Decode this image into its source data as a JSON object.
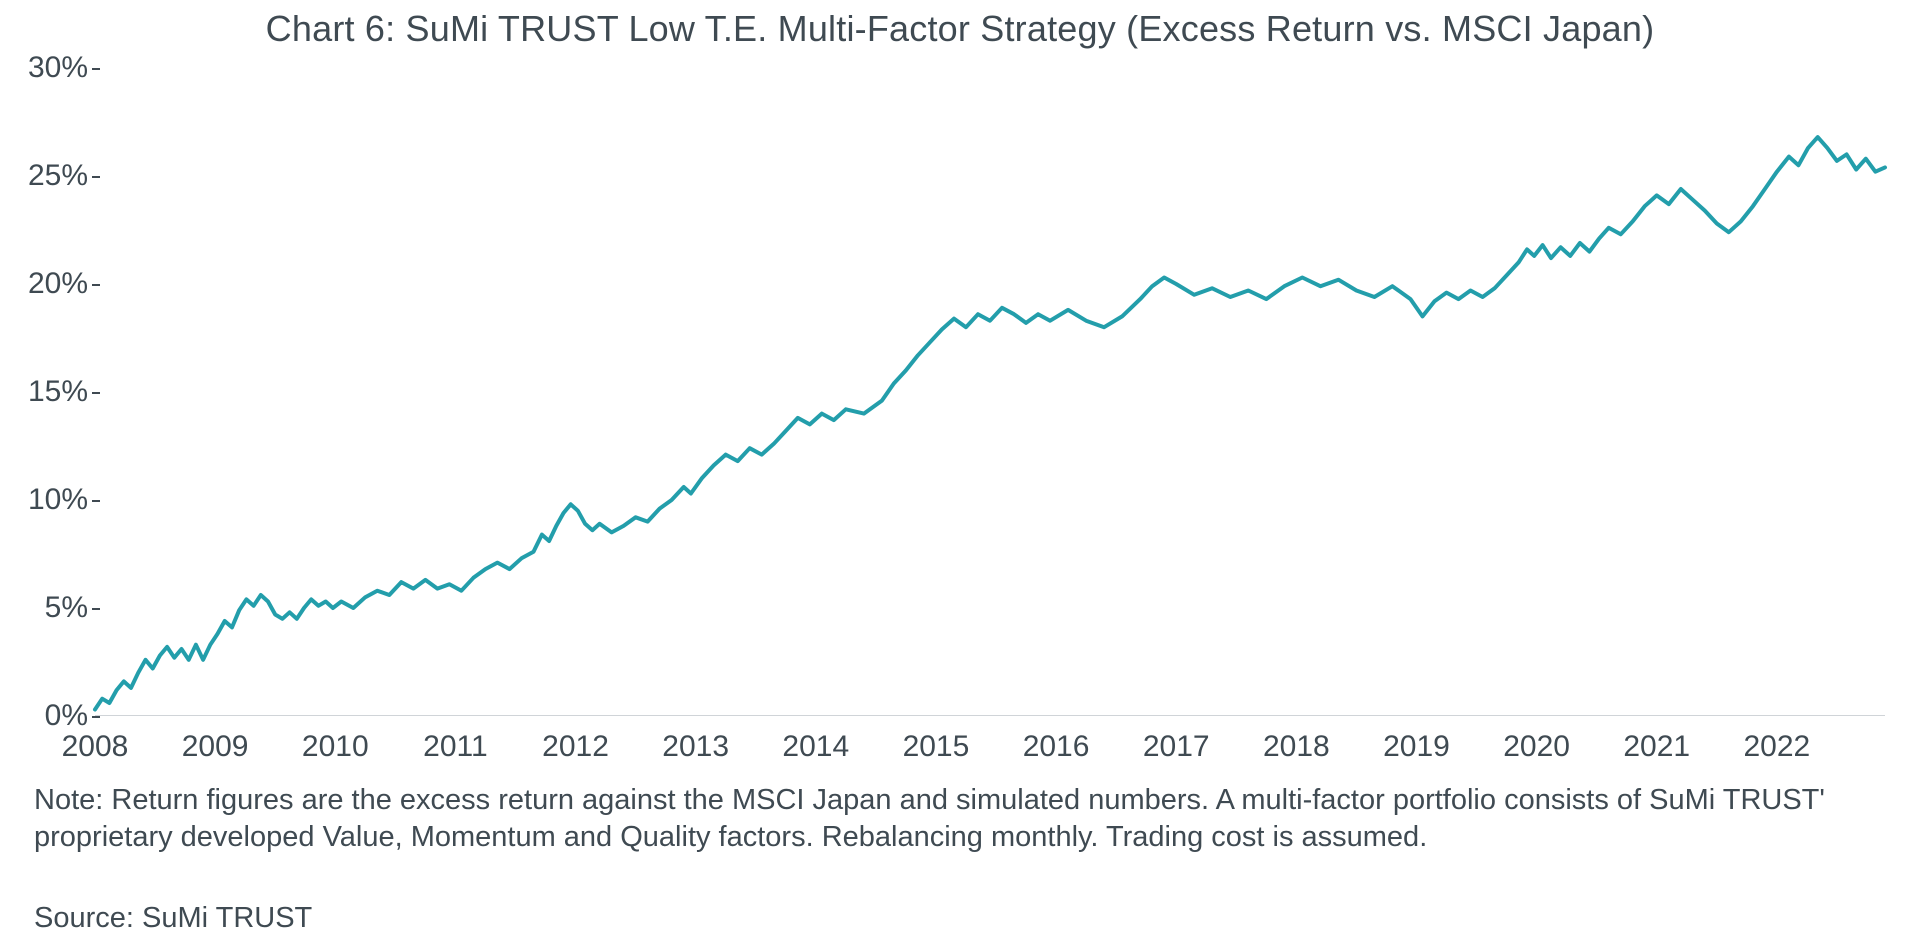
{
  "chart": {
    "type": "line",
    "title": "Chart 6: SuMi TRUST Low T.E. Multi-Factor Strategy (Excess Return vs. MSCI Japan)",
    "title_fontsize": 36,
    "title_color": "#3f4a52",
    "background_color": "#ffffff",
    "line_color": "#239eab",
    "line_width": 4,
    "axis_color": "#3f4a52",
    "baseline_color": "#d0d4d8",
    "label_fontsize": 30,
    "caption_fontsize": 29,
    "caption_color": "#3f4a52",
    "ylim": [
      0,
      30
    ],
    "ytick_step": 5,
    "yticks": [
      "0%",
      "5%",
      "10%",
      "15%",
      "20%",
      "25%",
      "30%"
    ],
    "xlim": [
      2008,
      2022.9
    ],
    "xticks": [
      "2008",
      "2009",
      "2010",
      "2011",
      "2012",
      "2013",
      "2014",
      "2015",
      "2016",
      "2017",
      "2018",
      "2019",
      "2020",
      "2021",
      "2022"
    ],
    "series": [
      {
        "x": 2008.0,
        "y": 0.3
      },
      {
        "x": 2008.06,
        "y": 0.8
      },
      {
        "x": 2008.12,
        "y": 0.6
      },
      {
        "x": 2008.18,
        "y": 1.2
      },
      {
        "x": 2008.24,
        "y": 1.6
      },
      {
        "x": 2008.3,
        "y": 1.3
      },
      {
        "x": 2008.36,
        "y": 2.0
      },
      {
        "x": 2008.42,
        "y": 2.6
      },
      {
        "x": 2008.48,
        "y": 2.2
      },
      {
        "x": 2008.54,
        "y": 2.8
      },
      {
        "x": 2008.6,
        "y": 3.2
      },
      {
        "x": 2008.66,
        "y": 2.7
      },
      {
        "x": 2008.72,
        "y": 3.1
      },
      {
        "x": 2008.78,
        "y": 2.6
      },
      {
        "x": 2008.84,
        "y": 3.3
      },
      {
        "x": 2008.9,
        "y": 2.6
      },
      {
        "x": 2008.96,
        "y": 3.3
      },
      {
        "x": 2009.02,
        "y": 3.8
      },
      {
        "x": 2009.08,
        "y": 4.4
      },
      {
        "x": 2009.14,
        "y": 4.1
      },
      {
        "x": 2009.2,
        "y": 4.9
      },
      {
        "x": 2009.26,
        "y": 5.4
      },
      {
        "x": 2009.32,
        "y": 5.1
      },
      {
        "x": 2009.38,
        "y": 5.6
      },
      {
        "x": 2009.44,
        "y": 5.3
      },
      {
        "x": 2009.5,
        "y": 4.7
      },
      {
        "x": 2009.56,
        "y": 4.5
      },
      {
        "x": 2009.62,
        "y": 4.8
      },
      {
        "x": 2009.68,
        "y": 4.5
      },
      {
        "x": 2009.74,
        "y": 5.0
      },
      {
        "x": 2009.8,
        "y": 5.4
      },
      {
        "x": 2009.86,
        "y": 5.1
      },
      {
        "x": 2009.92,
        "y": 5.3
      },
      {
        "x": 2009.98,
        "y": 5.0
      },
      {
        "x": 2010.05,
        "y": 5.3
      },
      {
        "x": 2010.15,
        "y": 5.0
      },
      {
        "x": 2010.25,
        "y": 5.5
      },
      {
        "x": 2010.35,
        "y": 5.8
      },
      {
        "x": 2010.45,
        "y": 5.6
      },
      {
        "x": 2010.55,
        "y": 6.2
      },
      {
        "x": 2010.65,
        "y": 5.9
      },
      {
        "x": 2010.75,
        "y": 6.3
      },
      {
        "x": 2010.85,
        "y": 5.9
      },
      {
        "x": 2010.95,
        "y": 6.1
      },
      {
        "x": 2011.05,
        "y": 5.8
      },
      {
        "x": 2011.15,
        "y": 6.4
      },
      {
        "x": 2011.25,
        "y": 6.8
      },
      {
        "x": 2011.35,
        "y": 7.1
      },
      {
        "x": 2011.45,
        "y": 6.8
      },
      {
        "x": 2011.55,
        "y": 7.3
      },
      {
        "x": 2011.65,
        "y": 7.6
      },
      {
        "x": 2011.72,
        "y": 8.4
      },
      {
        "x": 2011.78,
        "y": 8.1
      },
      {
        "x": 2011.84,
        "y": 8.8
      },
      {
        "x": 2011.9,
        "y": 9.4
      },
      {
        "x": 2011.96,
        "y": 9.8
      },
      {
        "x": 2012.02,
        "y": 9.5
      },
      {
        "x": 2012.08,
        "y": 8.9
      },
      {
        "x": 2012.14,
        "y": 8.6
      },
      {
        "x": 2012.2,
        "y": 8.9
      },
      {
        "x": 2012.3,
        "y": 8.5
      },
      {
        "x": 2012.4,
        "y": 8.8
      },
      {
        "x": 2012.5,
        "y": 9.2
      },
      {
        "x": 2012.6,
        "y": 9.0
      },
      {
        "x": 2012.7,
        "y": 9.6
      },
      {
        "x": 2012.8,
        "y": 10.0
      },
      {
        "x": 2012.9,
        "y": 10.6
      },
      {
        "x": 2012.96,
        "y": 10.3
      },
      {
        "x": 2013.05,
        "y": 11.0
      },
      {
        "x": 2013.15,
        "y": 11.6
      },
      {
        "x": 2013.25,
        "y": 12.1
      },
      {
        "x": 2013.35,
        "y": 11.8
      },
      {
        "x": 2013.45,
        "y": 12.4
      },
      {
        "x": 2013.55,
        "y": 12.1
      },
      {
        "x": 2013.65,
        "y": 12.6
      },
      {
        "x": 2013.75,
        "y": 13.2
      },
      {
        "x": 2013.85,
        "y": 13.8
      },
      {
        "x": 2013.95,
        "y": 13.5
      },
      {
        "x": 2014.05,
        "y": 14.0
      },
      {
        "x": 2014.15,
        "y": 13.7
      },
      {
        "x": 2014.25,
        "y": 14.2
      },
      {
        "x": 2014.4,
        "y": 14.0
      },
      {
        "x": 2014.55,
        "y": 14.6
      },
      {
        "x": 2014.65,
        "y": 15.4
      },
      {
        "x": 2014.75,
        "y": 16.0
      },
      {
        "x": 2014.85,
        "y": 16.7
      },
      {
        "x": 2014.95,
        "y": 17.3
      },
      {
        "x": 2015.05,
        "y": 17.9
      },
      {
        "x": 2015.15,
        "y": 18.4
      },
      {
        "x": 2015.25,
        "y": 18.0
      },
      {
        "x": 2015.35,
        "y": 18.6
      },
      {
        "x": 2015.45,
        "y": 18.3
      },
      {
        "x": 2015.55,
        "y": 18.9
      },
      {
        "x": 2015.65,
        "y": 18.6
      },
      {
        "x": 2015.75,
        "y": 18.2
      },
      {
        "x": 2015.85,
        "y": 18.6
      },
      {
        "x": 2015.95,
        "y": 18.3
      },
      {
        "x": 2016.1,
        "y": 18.8
      },
      {
        "x": 2016.25,
        "y": 18.3
      },
      {
        "x": 2016.4,
        "y": 18.0
      },
      {
        "x": 2016.55,
        "y": 18.5
      },
      {
        "x": 2016.7,
        "y": 19.3
      },
      {
        "x": 2016.8,
        "y": 19.9
      },
      {
        "x": 2016.9,
        "y": 20.3
      },
      {
        "x": 2017.0,
        "y": 20.0
      },
      {
        "x": 2017.15,
        "y": 19.5
      },
      {
        "x": 2017.3,
        "y": 19.8
      },
      {
        "x": 2017.45,
        "y": 19.4
      },
      {
        "x": 2017.6,
        "y": 19.7
      },
      {
        "x": 2017.75,
        "y": 19.3
      },
      {
        "x": 2017.9,
        "y": 19.9
      },
      {
        "x": 2018.05,
        "y": 20.3
      },
      {
        "x": 2018.2,
        "y": 19.9
      },
      {
        "x": 2018.35,
        "y": 20.2
      },
      {
        "x": 2018.5,
        "y": 19.7
      },
      {
        "x": 2018.65,
        "y": 19.4
      },
      {
        "x": 2018.8,
        "y": 19.9
      },
      {
        "x": 2018.95,
        "y": 19.3
      },
      {
        "x": 2019.05,
        "y": 18.5
      },
      {
        "x": 2019.15,
        "y": 19.2
      },
      {
        "x": 2019.25,
        "y": 19.6
      },
      {
        "x": 2019.35,
        "y": 19.3
      },
      {
        "x": 2019.45,
        "y": 19.7
      },
      {
        "x": 2019.55,
        "y": 19.4
      },
      {
        "x": 2019.65,
        "y": 19.8
      },
      {
        "x": 2019.75,
        "y": 20.4
      },
      {
        "x": 2019.85,
        "y": 21.0
      },
      {
        "x": 2019.92,
        "y": 21.6
      },
      {
        "x": 2019.98,
        "y": 21.3
      },
      {
        "x": 2020.05,
        "y": 21.8
      },
      {
        "x": 2020.12,
        "y": 21.2
      },
      {
        "x": 2020.2,
        "y": 21.7
      },
      {
        "x": 2020.28,
        "y": 21.3
      },
      {
        "x": 2020.36,
        "y": 21.9
      },
      {
        "x": 2020.44,
        "y": 21.5
      },
      {
        "x": 2020.52,
        "y": 22.1
      },
      {
        "x": 2020.6,
        "y": 22.6
      },
      {
        "x": 2020.7,
        "y": 22.3
      },
      {
        "x": 2020.8,
        "y": 22.9
      },
      {
        "x": 2020.9,
        "y": 23.6
      },
      {
        "x": 2021.0,
        "y": 24.1
      },
      {
        "x": 2021.1,
        "y": 23.7
      },
      {
        "x": 2021.2,
        "y": 24.4
      },
      {
        "x": 2021.3,
        "y": 23.9
      },
      {
        "x": 2021.4,
        "y": 23.4
      },
      {
        "x": 2021.5,
        "y": 22.8
      },
      {
        "x": 2021.6,
        "y": 22.4
      },
      {
        "x": 2021.7,
        "y": 22.9
      },
      {
        "x": 2021.8,
        "y": 23.6
      },
      {
        "x": 2021.9,
        "y": 24.4
      },
      {
        "x": 2022.0,
        "y": 25.2
      },
      {
        "x": 2022.1,
        "y": 25.9
      },
      {
        "x": 2022.18,
        "y": 25.5
      },
      {
        "x": 2022.26,
        "y": 26.3
      },
      {
        "x": 2022.34,
        "y": 26.8
      },
      {
        "x": 2022.42,
        "y": 26.3
      },
      {
        "x": 2022.5,
        "y": 25.7
      },
      {
        "x": 2022.58,
        "y": 26.0
      },
      {
        "x": 2022.66,
        "y": 25.3
      },
      {
        "x": 2022.74,
        "y": 25.8
      },
      {
        "x": 2022.82,
        "y": 25.2
      },
      {
        "x": 2022.9,
        "y": 25.4
      }
    ],
    "caption": "Note: Return figures are the excess return against the MSCI Japan and simulated numbers. A multi-factor portfolio consists of SuMi TRUST' proprietary developed Value, Momentum and Quality factors. Rebalancing monthly. Trading cost is assumed.",
    "source": "Source: SuMi TRUST"
  }
}
